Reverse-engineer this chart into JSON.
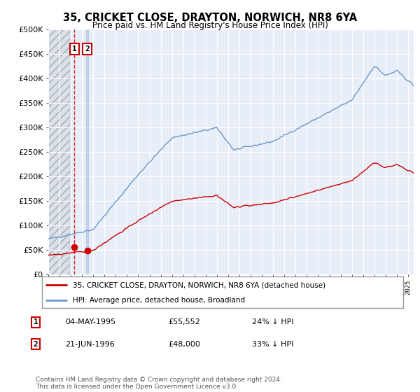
{
  "title": "35, CRICKET CLOSE, DRAYTON, NORWICH, NR8 6YA",
  "subtitle": "Price paid vs. HM Land Registry's House Price Index (HPI)",
  "legend_line1": "35, CRICKET CLOSE, DRAYTON, NORWICH, NR8 6YA (detached house)",
  "legend_line2": "HPI: Average price, detached house, Broadland",
  "footer": "Contains HM Land Registry data © Crown copyright and database right 2024.\nThis data is licensed under the Open Government Licence v3.0.",
  "transaction1_date": "04-MAY-1995",
  "transaction1_price": 55552,
  "transaction1_hpi_text": "24% ↓ HPI",
  "transaction2_date": "21-JUN-1996",
  "transaction2_price": 48000,
  "transaction2_hpi_text": "33% ↓ HPI",
  "transaction1_year": 1995.33,
  "transaction2_year": 1996.46,
  "price_color": "#cc0000",
  "hpi_color": "#6699cc",
  "ylim": [
    0,
    500000
  ],
  "xlim_start": 1993.0,
  "xlim_end": 2025.5,
  "background_color": "#ffffff",
  "plot_bg_color": "#e8eef8"
}
